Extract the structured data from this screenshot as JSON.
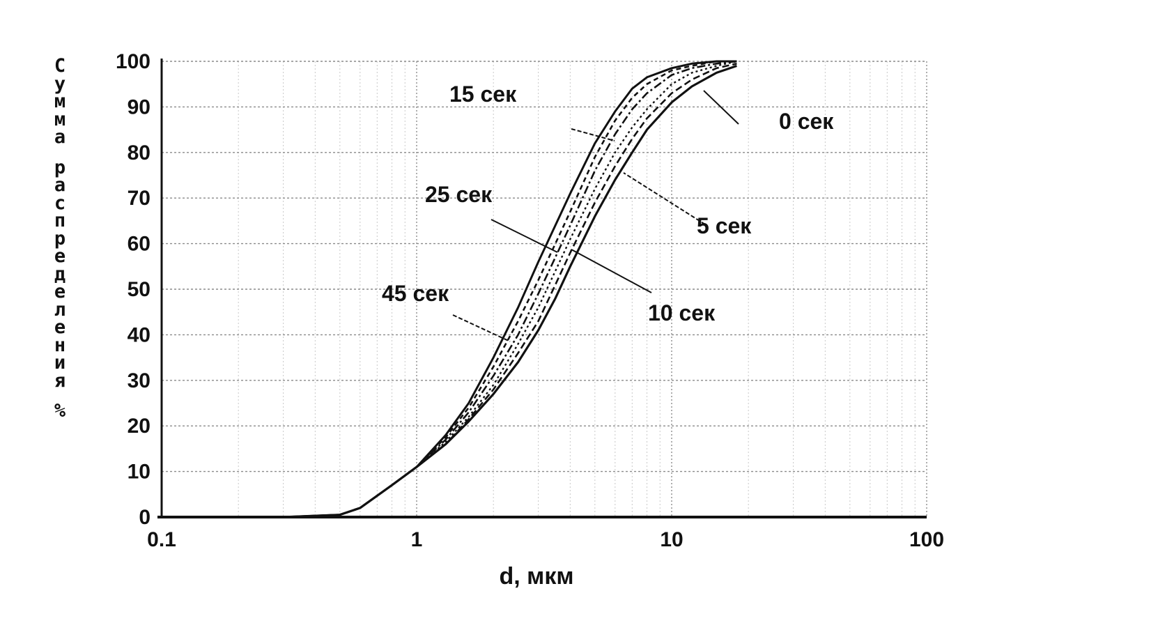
{
  "chart_data": {
    "type": "line",
    "title": "",
    "xlabel": "d, мкм",
    "ylabel": "Сумма распределения %",
    "x_scale": "log",
    "xlim": [
      0.1,
      100
    ],
    "ylim": [
      0,
      100
    ],
    "x_ticks": [
      "0.1",
      "1",
      "10",
      "100"
    ],
    "y_ticks": [
      "0",
      "10",
      "20",
      "30",
      "40",
      "50",
      "60",
      "70",
      "80",
      "90",
      "100"
    ],
    "grid": true,
    "series": [
      {
        "name": "0 сек",
        "x": [
          0.3,
          0.5,
          0.6,
          0.8,
          1.0,
          1.3,
          1.6,
          2.0,
          2.5,
          3.0,
          3.5,
          4.0,
          5.0,
          6.0,
          7.0,
          8.0,
          10.0,
          12.0,
          15.0,
          18.0
        ],
        "y": [
          0,
          0.5,
          2,
          7,
          11,
          16,
          21,
          27,
          34,
          41,
          48,
          55,
          66,
          74,
          80,
          85,
          91,
          94.5,
          97.5,
          99
        ]
      },
      {
        "name": "5 сек",
        "x": [
          0.3,
          0.5,
          0.6,
          0.8,
          1.0,
          1.3,
          1.6,
          2.0,
          2.5,
          3.0,
          3.5,
          4.0,
          5.0,
          6.0,
          7.0,
          8.0,
          10.0,
          12.0,
          15.0,
          18.0
        ],
        "y": [
          0,
          0.5,
          2,
          7,
          11,
          16,
          21.5,
          28,
          36,
          43,
          51,
          58,
          69,
          77,
          83,
          87.5,
          93,
          96,
          98.5,
          99.5
        ]
      },
      {
        "name": "10 сек",
        "x": [
          0.3,
          0.5,
          0.6,
          0.8,
          1.0,
          1.3,
          1.6,
          2.0,
          2.5,
          3.0,
          3.5,
          4.0,
          5.0,
          6.0,
          7.0,
          8.0,
          10.0,
          12.0,
          15.0,
          18.0
        ],
        "y": [
          0,
          0.5,
          2,
          7,
          11,
          16.5,
          22,
          29,
          38,
          46,
          54,
          61,
          72,
          80,
          85.5,
          89.5,
          95,
          97.5,
          99,
          100
        ]
      },
      {
        "name": "15 сек",
        "x": [
          0.3,
          0.5,
          0.6,
          0.8,
          1.0,
          1.3,
          1.6,
          2.0,
          2.5,
          3.0,
          3.5,
          4.0,
          5.0,
          6.0,
          7.0,
          8.0,
          10.0,
          12.0,
          15.0,
          18.0
        ],
        "y": [
          0,
          0.5,
          2,
          7,
          11,
          17,
          23,
          31,
          40,
          49,
          57,
          64,
          76,
          84,
          89.5,
          93,
          97,
          98.5,
          99.5,
          100
        ]
      },
      {
        "name": "25 сек",
        "x": [
          0.3,
          0.5,
          0.6,
          0.8,
          1.0,
          1.3,
          1.6,
          2.0,
          2.5,
          3.0,
          3.5,
          4.0,
          5.0,
          6.0,
          7.0,
          8.0,
          10.0,
          12.0,
          15.0,
          18.0
        ],
        "y": [
          0,
          0.5,
          2,
          7,
          11,
          17.5,
          24,
          33,
          43,
          52,
          60,
          67,
          79,
          87,
          92,
          95,
          98,
          99,
          100,
          100
        ]
      },
      {
        "name": "45 сек",
        "x": [
          0.3,
          0.5,
          0.6,
          0.8,
          1.0,
          1.3,
          1.6,
          2.0,
          2.5,
          3.0,
          3.5,
          4.0,
          5.0,
          6.0,
          7.0,
          8.0,
          10.0,
          12.0,
          15.0,
          18.0
        ],
        "y": [
          0,
          0.5,
          2,
          7,
          11,
          18,
          25,
          35,
          46,
          56,
          64,
          71,
          82,
          89,
          94,
          96.5,
          98.5,
          99.5,
          100,
          100
        ]
      }
    ],
    "annotations": [
      "0 сек",
      "5 сек",
      "10 сек",
      "15 сек",
      "25 сек",
      "45 сек"
    ]
  }
}
